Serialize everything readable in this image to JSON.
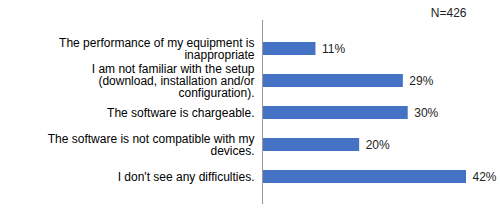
{
  "chart_data": {
    "type": "bar",
    "orientation": "horizontal",
    "annotation": "N=426",
    "categories": [
      "The performance of my equipment is inappropriate",
      "I am not familiar with the setup (download, installation and/or configuration).",
      "The software is chargeable.",
      "The software is not compatible with my devices.",
      "I don't see any difficulties."
    ],
    "values": [
      11,
      29,
      30,
      20,
      42
    ],
    "value_labels": [
      "11%",
      "29%",
      "30%",
      "20%",
      "42%"
    ],
    "color": "#4472c4",
    "data_labels": true,
    "tick_labels": "y",
    "grid": false
  }
}
